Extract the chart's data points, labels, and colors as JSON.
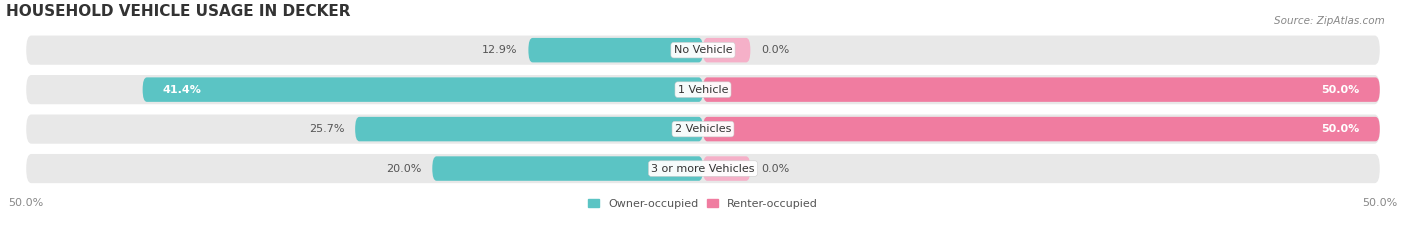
{
  "title": "HOUSEHOLD VEHICLE USAGE IN DECKER",
  "source": "Source: ZipAtlas.com",
  "categories": [
    "No Vehicle",
    "1 Vehicle",
    "2 Vehicles",
    "3 or more Vehicles"
  ],
  "owner_values": [
    12.9,
    41.4,
    25.7,
    20.0
  ],
  "renter_values": [
    0.0,
    50.0,
    50.0,
    0.0
  ],
  "owner_color": "#5bc4c4",
  "renter_color": "#f07ca0",
  "renter_color_light": "#f5b0c8",
  "bar_bg_color": "#e8e8e8",
  "bar_bg_shadow": "#d0d0d0",
  "xlim": 50.0,
  "x_tick_labels": [
    "50.0%",
    "50.0%"
  ],
  "legend_owner": "Owner-occupied",
  "legend_renter": "Renter-occupied",
  "title_fontsize": 11,
  "source_fontsize": 7.5,
  "label_fontsize": 8,
  "category_fontsize": 8,
  "background_color": "#ffffff"
}
